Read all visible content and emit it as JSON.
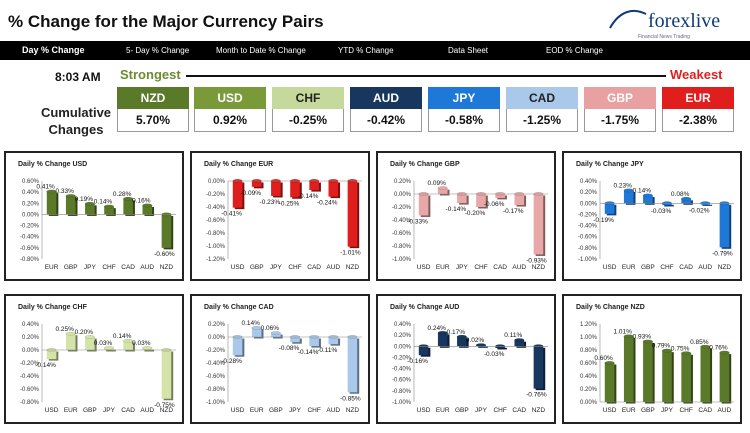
{
  "header": {
    "title": "% Change for the Major Currency Pairs",
    "logo_text": "forexlive",
    "logo_tagline": "Financial News Trading"
  },
  "nav": {
    "items": [
      {
        "label": "Day % Change"
      },
      {
        "label": "5- Day % Change"
      },
      {
        "label": "Month to Date % Change"
      },
      {
        "label": "YTD % Change"
      },
      {
        "label": "Data Sheet"
      },
      {
        "label": "EOD % Change"
      }
    ]
  },
  "summary": {
    "time": "8:03 AM",
    "strongest_label": "Strongest",
    "weakest_label": "Weakest",
    "cumulative_label_line1": "Cumulative",
    "cumulative_label_line2": "Changes",
    "currencies": [
      {
        "name": "NZD",
        "value": "5.70%",
        "color": "#5a7a2a",
        "text_color": "#ffffff"
      },
      {
        "name": "USD",
        "value": "0.92%",
        "color": "#7a9a3a",
        "text_color": "#ffffff"
      },
      {
        "name": "CHF",
        "value": "-0.25%",
        "color": "#c5d99a",
        "text_color": "#222222"
      },
      {
        "name": "AUD",
        "value": "-0.42%",
        "color": "#17375e",
        "text_color": "#ffffff"
      },
      {
        "name": "JPY",
        "value": "-0.58%",
        "color": "#1e78d8",
        "text_color": "#ffffff"
      },
      {
        "name": "CAD",
        "value": "-1.25%",
        "color": "#a9c8ea",
        "text_color": "#222222"
      },
      {
        "name": "GBP",
        "value": "-1.75%",
        "color": "#e8a0a0",
        "text_color": "#ffffff"
      },
      {
        "name": "EUR",
        "value": "-2.38%",
        "color": "#e01e1e",
        "text_color": "#ffffff"
      }
    ]
  },
  "chart_data": [
    {
      "type": "bar",
      "title": "Daily % Change USD",
      "color": "#5a7a2a",
      "categories": [
        "EUR",
        "GBP",
        "JPY",
        "CHF",
        "CAD",
        "AUD",
        "NZD"
      ],
      "values": [
        0.41,
        0.33,
        0.19,
        0.14,
        0.28,
        0.16,
        -0.6
      ],
      "labels": [
        "0.41%",
        "0.33%",
        "0.19%",
        "0.14%",
        "0.28%",
        "0.16%",
        "-0.60%"
      ],
      "ylim": [
        -0.8,
        0.6
      ],
      "ticks": [
        0.6,
        0.4,
        0.2,
        0.0,
        -0.2,
        -0.4,
        -0.6,
        -0.8
      ],
      "tick_labels": [
        "0.60%",
        "0.40%",
        "0.20%",
        "0.00%",
        "-0.20%",
        "-0.40%",
        "-0.60%",
        "-0.80%"
      ]
    },
    {
      "type": "bar",
      "title": "Daily % Change EUR",
      "color": "#e01e1e",
      "categories": [
        "USD",
        "GBP",
        "JPY",
        "CHF",
        "CAD",
        "AUD",
        "NZD"
      ],
      "values": [
        -0.41,
        -0.09,
        -0.23,
        -0.25,
        -0.14,
        -0.24,
        -1.01
      ],
      "labels": [
        "-0.41%",
        "-0.09%",
        "-0.23%",
        "-0.25%",
        "-0.14%",
        "-0.24%",
        "-1.01%"
      ],
      "ylim": [
        -1.2,
        0.0
      ],
      "ticks": [
        0.0,
        -0.2,
        -0.4,
        -0.6,
        -0.8,
        -1.0,
        -1.2
      ],
      "tick_labels": [
        "0.00%",
        "-0.20%",
        "-0.40%",
        "-0.60%",
        "-0.80%",
        "-1.00%",
        "-1.20%"
      ]
    },
    {
      "type": "bar",
      "title": "Daily % Change GBP",
      "color": "#e8a8a8",
      "categories": [
        "USD",
        "EUR",
        "JPY",
        "CHF",
        "CAD",
        "AUD",
        "NZD"
      ],
      "values": [
        -0.33,
        0.09,
        -0.14,
        -0.2,
        -0.06,
        -0.17,
        -0.93
      ],
      "labels": [
        "-0.33%",
        "0.09%",
        "-0.14%",
        "-0.20%",
        "-0.06%",
        "-0.17%",
        "-0.93%"
      ],
      "ylim": [
        -1.0,
        0.2
      ],
      "ticks": [
        0.2,
        0.0,
        -0.2,
        -0.4,
        -0.6,
        -0.8,
        -1.0
      ],
      "tick_labels": [
        "0.20%",
        "0.00%",
        "-0.20%",
        "-0.40%",
        "-0.60%",
        "-0.80%",
        "-1.00%"
      ]
    },
    {
      "type": "bar",
      "title": "Daily % Change JPY",
      "color": "#1e78d8",
      "categories": [
        "USD",
        "EUR",
        "GBP",
        "CHF",
        "CAD",
        "AUD",
        "NZD"
      ],
      "values": [
        -0.19,
        0.23,
        0.14,
        -0.03,
        0.08,
        -0.02,
        -0.79
      ],
      "labels": [
        "-0.19%",
        "0.23%",
        "0.14%",
        "-0.03%",
        "0.08%",
        "-0.02%",
        "-0.79%"
      ],
      "ylim": [
        -1.0,
        0.4
      ],
      "ticks": [
        0.4,
        0.2,
        0.0,
        -0.2,
        -0.4,
        -0.6,
        -0.8,
        -1.0
      ],
      "tick_labels": [
        "0.40%",
        "0.20%",
        "0.00%",
        "-0.20%",
        "-0.40%",
        "-0.60%",
        "-0.80%",
        "-1.00%"
      ]
    },
    {
      "type": "bar",
      "title": "Daily % Change CHF",
      "color": "#d4e4a8",
      "categories": [
        "USD",
        "EUR",
        "GBP",
        "JPY",
        "CAD",
        "AUD",
        "NZD"
      ],
      "values": [
        -0.14,
        0.25,
        0.2,
        0.03,
        0.14,
        0.03,
        -0.75
      ],
      "labels": [
        "-0.14%",
        "0.25%",
        "0.20%",
        "0.03%",
        "0.14%",
        "0.03%",
        "-0.75%"
      ],
      "ylim": [
        -0.8,
        0.4
      ],
      "ticks": [
        0.4,
        0.2,
        0.0,
        -0.2,
        -0.4,
        -0.6,
        -0.8
      ],
      "tick_labels": [
        "0.40%",
        "0.20%",
        "0.00%",
        "-0.20%",
        "-0.40%",
        "-0.60%",
        "-0.80%"
      ]
    },
    {
      "type": "bar",
      "title": "Daily % Change CAD",
      "color": "#a9c8ea",
      "categories": [
        "USD",
        "EUR",
        "GBP",
        "JPY",
        "CHF",
        "AUD",
        "NZD"
      ],
      "values": [
        -0.28,
        0.14,
        0.06,
        -0.08,
        -0.14,
        -0.11,
        -0.85
      ],
      "labels": [
        "-0.28%",
        "0.14%",
        "0.06%",
        "-0.08%",
        "-0.14%",
        "-0.11%",
        "-0.85%"
      ],
      "ylim": [
        -1.0,
        0.2
      ],
      "ticks": [
        0.2,
        0.0,
        -0.2,
        -0.4,
        -0.6,
        -0.8,
        -1.0
      ],
      "tick_labels": [
        "0.20%",
        "0.00%",
        "-0.20%",
        "-0.40%",
        "-0.60%",
        "-0.80%",
        "-1.00%"
      ]
    },
    {
      "type": "bar",
      "title": "Daily % Change AUD",
      "color": "#17375e",
      "categories": [
        "USD",
        "EUR",
        "GBP",
        "JPY",
        "CHF",
        "CAD",
        "NZD"
      ],
      "values": [
        -0.16,
        0.24,
        0.17,
        0.02,
        -0.03,
        0.11,
        -0.76
      ],
      "labels": [
        "-0.16%",
        "0.24%",
        "0.17%",
        "0.02%",
        "-0.03%",
        "0.11%",
        "-0.76%"
      ],
      "ylim": [
        -1.0,
        0.4
      ],
      "ticks": [
        0.4,
        0.2,
        0.0,
        -0.2,
        -0.4,
        -0.6,
        -0.8,
        -1.0
      ],
      "tick_labels": [
        "0.40%",
        "0.20%",
        "0.00%",
        "-0.20%",
        "-0.40%",
        "-0.60%",
        "-0.80%",
        "-1.00%"
      ]
    },
    {
      "type": "bar",
      "title": "Daily % Change NZD",
      "color": "#5a7a2a",
      "categories": [
        "USD",
        "EUR",
        "GBP",
        "JPY",
        "CHF",
        "CAD",
        "AUD"
      ],
      "values": [
        0.6,
        1.01,
        0.93,
        0.79,
        0.75,
        0.85,
        0.76
      ],
      "labels": [
        "0.60%",
        "1.01%",
        "0.93%",
        "0.79%",
        "0.75%",
        "0.85%",
        "0.76%"
      ],
      "ylim": [
        0.0,
        1.2
      ],
      "ticks": [
        1.2,
        1.0,
        0.8,
        0.6,
        0.4,
        0.2,
        0.0
      ],
      "tick_labels": [
        "1.20%",
        "1.00%",
        "0.80%",
        "0.60%",
        "0.40%",
        "0.20%",
        "0.00%"
      ]
    }
  ]
}
